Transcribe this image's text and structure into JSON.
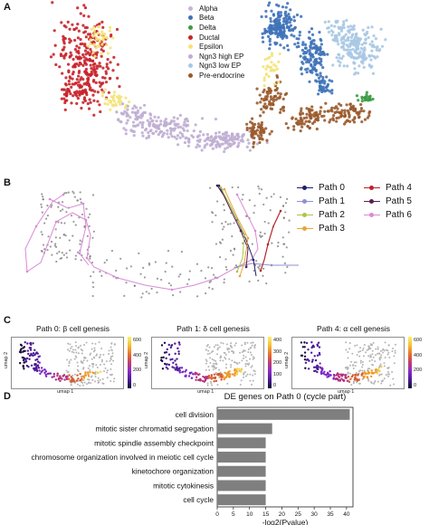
{
  "panels": {
    "a": "A",
    "b": "B",
    "c": "C",
    "d": "D"
  },
  "cell_types": [
    {
      "name": "Alpha",
      "color": "#c7b3dd"
    },
    {
      "name": "Beta",
      "color": "#3f73b9"
    },
    {
      "name": "Delta",
      "color": "#3d9b45"
    },
    {
      "name": "Ductal",
      "color": "#c8242b"
    },
    {
      "name": "Epsilon",
      "color": "#f4e37a"
    },
    {
      "name": "Ngn3 high EP",
      "color": "#bfaed3"
    },
    {
      "name": "Ngn3 low EP",
      "color": "#a8c8e4"
    },
    {
      "name": "Pre-endocrine",
      "color": "#9a5a2c"
    }
  ],
  "paths": [
    {
      "name": "Path 0",
      "color": "#1f1f6b"
    },
    {
      "name": "Path 1",
      "color": "#8f8fd6"
    },
    {
      "name": "Path 2",
      "color": "#a9c64a"
    },
    {
      "name": "Path 3",
      "color": "#e8a53a"
    },
    {
      "name": "Path 4",
      "color": "#b3262b"
    },
    {
      "name": "Path 5",
      "color": "#5a1f4d"
    },
    {
      "name": "Path 6",
      "color": "#d98ad6"
    }
  ],
  "umaps": [
    {
      "title": "Path 0: β cell genesis",
      "xlabel": "umap 1",
      "ylabel": "umap 2",
      "ticks": [
        "600",
        "400",
        "200",
        "0"
      ]
    },
    {
      "title": "Path 1: δ cell genesis",
      "xlabel": "umap 1",
      "ylabel": "umap 2",
      "ticks": [
        "400",
        "300",
        "200",
        "100",
        "0"
      ]
    },
    {
      "title": "Path 4: α cell genesis",
      "xlabel": "umap 1",
      "ylabel": "umap 2",
      "ticks": [
        "600",
        "400",
        "200",
        "0"
      ]
    }
  ],
  "chart_data": {
    "type": "bar",
    "orientation": "horizontal",
    "title": "DE genes on Path 0 (cycle part)",
    "xlabel": "-log2(Pvalue)",
    "ylabel": "",
    "xlim": [
      0,
      42
    ],
    "xticks": [
      "0",
      "5",
      "10",
      "15",
      "20",
      "25",
      "30",
      "35",
      "40"
    ],
    "categories": [
      "cell division",
      "mitotic sister chromatid segregation",
      "mitotic spindle assembly checkpoint",
      "chromosome organization involved in meiotic cell cycle",
      "kinetochore organization",
      "mitotic cytokinesis",
      "cell cycle"
    ],
    "values": [
      41,
      17,
      15,
      15,
      15,
      15,
      15
    ],
    "color": "#7f7f7f",
    "grid": false
  }
}
